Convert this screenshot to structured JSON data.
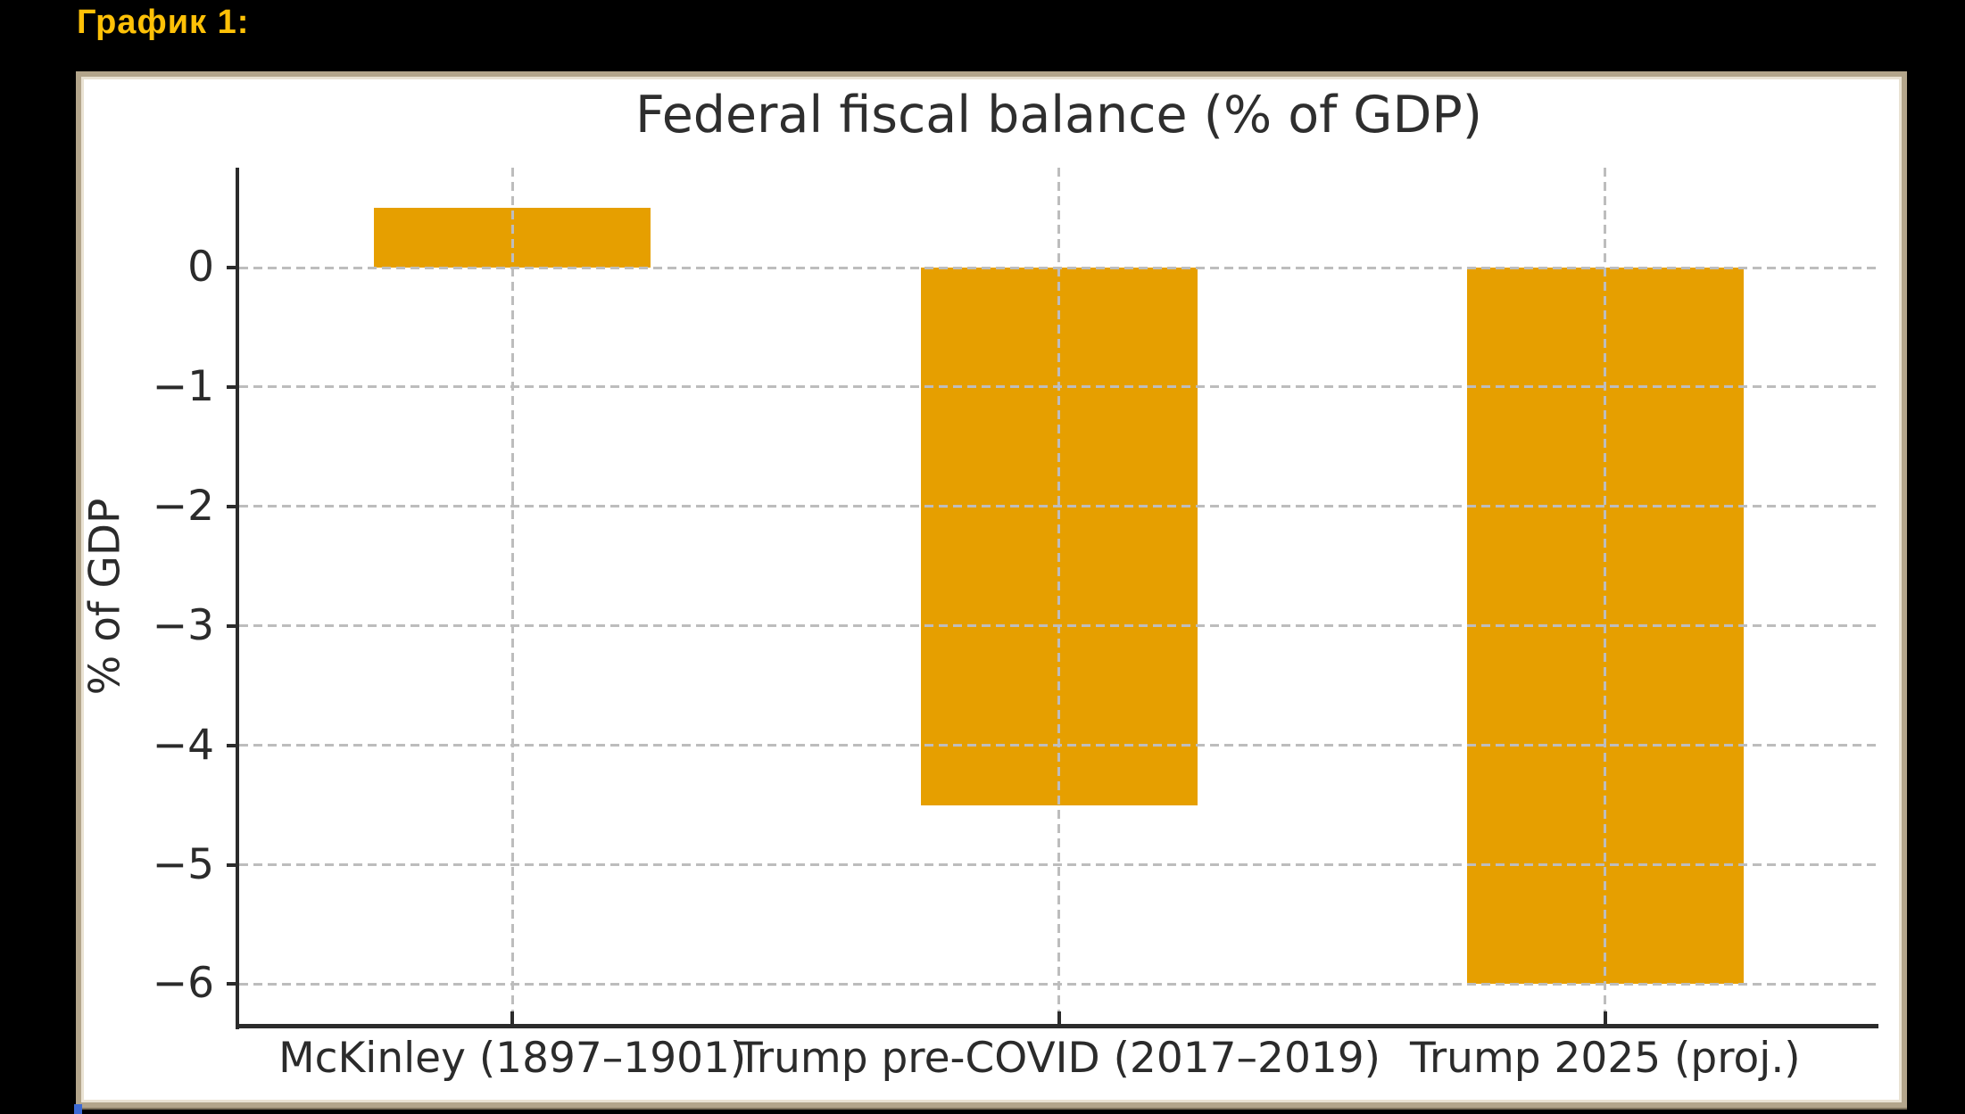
{
  "page": {
    "background_color": "#000000",
    "header_label": "График 1:",
    "header_color": "#FFC107"
  },
  "chart_data": {
    "type": "bar",
    "title": "Federal fiscal balance (% of GDP)",
    "xlabel": "",
    "ylabel": "% of GDP",
    "categories": [
      "McKinley (1897–1901)",
      "Trump pre-COVID (2017–2019)",
      "Trump 2025 (proj.)"
    ],
    "values": [
      0.5,
      -4.5,
      -6.0
    ],
    "bar_color": "#E69F00",
    "yticks": [
      0,
      -1,
      -2,
      -3,
      -4,
      -5,
      -6
    ],
    "ytick_labels": [
      "0",
      "−1",
      "−2",
      "−3",
      "−4",
      "−5",
      "−6"
    ],
    "ylim": [
      0.84,
      -6.35
    ],
    "grid": "dashed gray, horizontal at each ytick and vertical at each bar center, drawn above bars",
    "legend_position": "none",
    "panel_background": "#ffffff",
    "axis_color": "#2b2b2b"
  }
}
